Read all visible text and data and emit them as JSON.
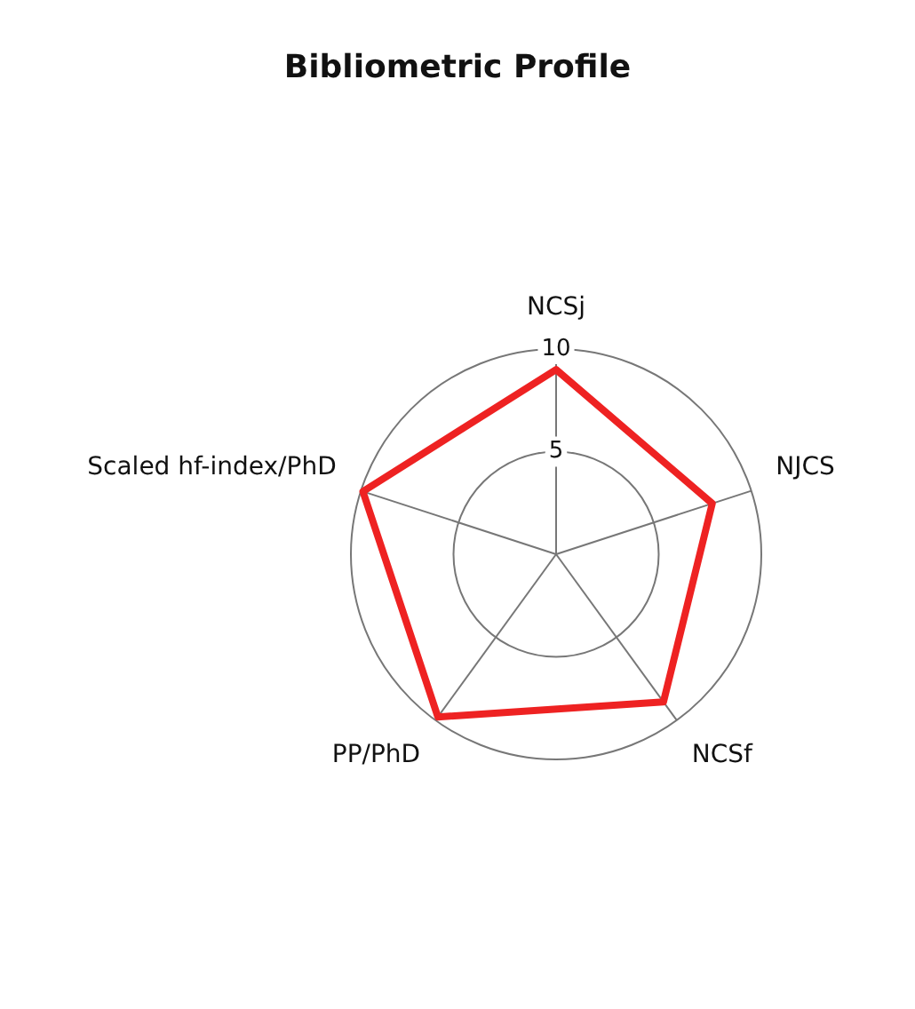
{
  "chart_data": {
    "type": "radar",
    "title": "Bibliometric Profile",
    "categories": [
      "NCSj",
      "NJCS",
      "NCSf",
      "PP/PhD",
      "Scaled hf-index/PhD"
    ],
    "series": [
      {
        "color": "#ee2222",
        "values": [
          9.0,
          8.0,
          8.9,
          9.8,
          9.9
        ]
      }
    ],
    "ylim": [
      0,
      10
    ],
    "yticks": [
      5,
      10
    ],
    "grid": true,
    "marker": "none",
    "legend": false
  }
}
